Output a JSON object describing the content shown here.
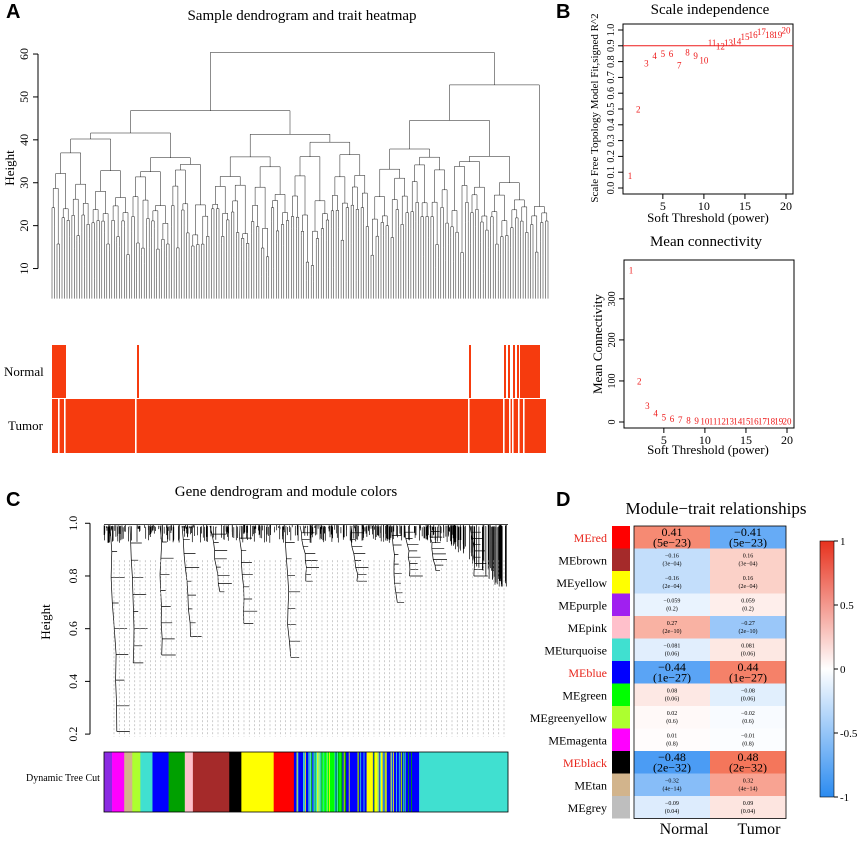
{
  "panels": {
    "a": "A",
    "b": "B",
    "c": "C",
    "d": "D"
  },
  "chart_data": [
    {
      "id": "A",
      "type": "dendrogram_heatmap",
      "title": "Sample dendrogram and trait heatmap",
      "ylabel": "Height",
      "yticks": [
        10,
        20,
        30,
        40,
        50,
        60
      ],
      "ylim": [
        5,
        67
      ],
      "traits": [
        "Normal",
        "Tumor"
      ],
      "colors": {
        "trait": "#f63b0e",
        "line": "#000000"
      }
    },
    {
      "id": "B1",
      "type": "scatter",
      "title": "Scale independence",
      "xlabel": "Soft Threshold (power)",
      "ylabel": "Scale Free Topology Model Fit,signed R^2",
      "xlim": [
        1,
        20
      ],
      "ylim": [
        0,
        1
      ],
      "xticks": [
        5,
        10,
        15,
        20
      ],
      "yticks": [
        0.0,
        0.1,
        0.2,
        0.3,
        0.4,
        0.5,
        0.6,
        0.7,
        0.8,
        0.9,
        1.0
      ],
      "hline": 0.9,
      "x": [
        1,
        2,
        3,
        4,
        5,
        6,
        7,
        8,
        9,
        10,
        11,
        12,
        13,
        14,
        15,
        16,
        17,
        18,
        19,
        20
      ],
      "y": [
        0.08,
        0.5,
        0.79,
        0.84,
        0.85,
        0.85,
        0.78,
        0.86,
        0.84,
        0.81,
        0.92,
        0.9,
        0.92,
        0.93,
        0.96,
        0.97,
        0.99,
        0.97,
        0.97,
        1.0
      ],
      "point_labels": [
        "1",
        "2",
        "3",
        "4",
        "5",
        "6",
        "7",
        "8",
        "9",
        "10",
        "11",
        "12",
        "13",
        "14",
        "15",
        "16",
        "17",
        "18",
        "19",
        "20"
      ],
      "colors": {
        "points": "#ee1a1a",
        "hline": "#ee1a1a"
      }
    },
    {
      "id": "B2",
      "type": "scatter",
      "title": "Mean connectivity",
      "xlabel": "Soft Threshold (power)",
      "ylabel": "Mean Connectivity",
      "xlim": [
        1,
        20
      ],
      "ylim": [
        0,
        380
      ],
      "xticks": [
        5,
        10,
        15,
        20
      ],
      "yticks": [
        0,
        100,
        200,
        300
      ],
      "x": [
        1,
        2,
        3,
        4,
        5,
        6,
        7,
        8,
        9,
        10,
        11,
        12,
        13,
        14,
        15,
        16,
        17,
        18,
        19,
        20
      ],
      "y": [
        370,
        100,
        40,
        22,
        12,
        8,
        6,
        5,
        4,
        3,
        3,
        3,
        3,
        3,
        3,
        3,
        3,
        3,
        3,
        3
      ],
      "point_labels": [
        "1",
        "2",
        "3",
        "4",
        "5",
        "6",
        "7",
        "8",
        "9",
        "10",
        "11",
        "12",
        "13",
        "14",
        "15",
        "16",
        "17",
        "18",
        "19",
        "20"
      ],
      "colors": {
        "points": "#ee1a1a"
      }
    },
    {
      "id": "C",
      "type": "dendrogram_colorbar",
      "title": "Gene dendrogram and module colors",
      "ylabel": "Height",
      "yticks": [
        "0.2",
        "0.4",
        "0.6",
        "0.8",
        "1.0"
      ],
      "ylim": [
        0.17,
        1.02
      ],
      "colorbar_label": "Dynamic Tree Cut",
      "modules": [
        {
          "color": "#8b2be2",
          "share": 0.02
        },
        {
          "color": "#ff00ff",
          "share": 0.03
        },
        {
          "color": "#d2b48c",
          "share": 0.02
        },
        {
          "color": "#adff2f",
          "share": 0.02
        },
        {
          "color": "#40e0d0",
          "share": 0.03
        },
        {
          "color": "#0000ff",
          "share": 0.04
        },
        {
          "color": "#00a000",
          "share": 0.04
        },
        {
          "color": "#ffc0cb",
          "share": 0.02
        },
        {
          "color": "#a52a2a",
          "share": 0.09
        },
        {
          "color": "#000000",
          "share": 0.03
        },
        {
          "color": "#ffff00",
          "share": 0.08
        },
        {
          "color": "#ff0000",
          "share": 0.05
        },
        {
          "color": "#0000ff",
          "share": 0.04
        },
        {
          "color": "#40e0d0",
          "share": 0.03
        },
        {
          "color": "#00ff00",
          "share": 0.05
        },
        {
          "color": "#0000ff",
          "share": 0.06
        },
        {
          "color": "#ffff00",
          "share": 0.04
        },
        {
          "color": "#0000ff",
          "share": 0.09
        },
        {
          "color": "#40e0d0",
          "share": 0.22
        }
      ]
    },
    {
      "id": "D",
      "type": "heatmap",
      "title": "Module−trait relationships",
      "columns": [
        "Normal",
        "Tumor"
      ],
      "legend_ticks": [
        "1",
        "0.5",
        "0",
        "-0.5",
        "-1"
      ],
      "rows": [
        {
          "name": "MEred",
          "color": "#ff0000",
          "highlight": true,
          "cells": [
            {
              "r": 0.41,
              "text": "0.41",
              "p": "(5e−23)"
            },
            {
              "r": -0.41,
              "text": "−0.41",
              "p": "(5e−23)"
            }
          ]
        },
        {
          "name": "MEbrown",
          "color": "#a52a2a",
          "highlight": false,
          "cells": [
            {
              "r": -0.16,
              "text": "−0.16",
              "p": "(3e−04)"
            },
            {
              "r": 0.16,
              "text": "0.16",
              "p": "(3e−04)"
            }
          ]
        },
        {
          "name": "MEyellow",
          "color": "#ffff00",
          "highlight": false,
          "cells": [
            {
              "r": -0.16,
              "text": "−0.16",
              "p": "(2e−04)"
            },
            {
              "r": 0.16,
              "text": "0.16",
              "p": "(2e−04)"
            }
          ]
        },
        {
          "name": "MEpurple",
          "color": "#a020f0",
          "highlight": false,
          "cells": [
            {
              "r": -0.059,
              "text": "−0.059",
              "p": "(0.2)"
            },
            {
              "r": 0.059,
              "text": "0.059",
              "p": "(0.2)"
            }
          ]
        },
        {
          "name": "MEpink",
          "color": "#ffc0cb",
          "highlight": false,
          "cells": [
            {
              "r": 0.27,
              "text": "0.27",
              "p": "(2e−10)"
            },
            {
              "r": -0.27,
              "text": "−0.27",
              "p": "(2e−10)"
            }
          ]
        },
        {
          "name": "MEturquoise",
          "color": "#40e0d0",
          "highlight": false,
          "cells": [
            {
              "r": -0.081,
              "text": "−0.081",
              "p": "(0.06)"
            },
            {
              "r": 0.081,
              "text": "0.081",
              "p": "(0.06)"
            }
          ]
        },
        {
          "name": "MEblue",
          "color": "#0000ff",
          "highlight": true,
          "cells": [
            {
              "r": -0.44,
              "text": "−0.44",
              "p": "(1e−27)"
            },
            {
              "r": 0.44,
              "text": "0.44",
              "p": "(1e−27)"
            }
          ]
        },
        {
          "name": "MEgreen",
          "color": "#00ff00",
          "highlight": false,
          "cells": [
            {
              "r": 0.08,
              "text": "0.08",
              "p": "(0.06)"
            },
            {
              "r": -0.08,
              "text": "−0.08",
              "p": "(0.06)"
            }
          ]
        },
        {
          "name": "MEgreenyellow",
          "color": "#adff2f",
          "highlight": false,
          "cells": [
            {
              "r": 0.02,
              "text": "0.02",
              "p": "(0.6)"
            },
            {
              "r": -0.02,
              "text": "−0.02",
              "p": "(0.6)"
            }
          ]
        },
        {
          "name": "MEmagenta",
          "color": "#ff00ff",
          "highlight": false,
          "cells": [
            {
              "r": 0.01,
              "text": "0.01",
              "p": "(0.8)"
            },
            {
              "r": -0.01,
              "text": "−0.01",
              "p": "(0.8)"
            }
          ]
        },
        {
          "name": "MEblack",
          "color": "#000000",
          "highlight": true,
          "cells": [
            {
              "r": -0.48,
              "text": "−0.48",
              "p": "(2e−32)"
            },
            {
              "r": 0.48,
              "text": "0.48",
              "p": "(2e−32)"
            }
          ]
        },
        {
          "name": "MEtan",
          "color": "#d2b48c",
          "highlight": false,
          "cells": [
            {
              "r": -0.32,
              "text": "−0.32",
              "p": "(4e−14)"
            },
            {
              "r": 0.32,
              "text": "0.32",
              "p": "(4e−14)"
            }
          ]
        },
        {
          "name": "MEgrey",
          "color": "#bebebe",
          "highlight": false,
          "cells": [
            {
              "r": -0.09,
              "text": "−0.09",
              "p": "(0.04)"
            },
            {
              "r": 0.09,
              "text": "0.09",
              "p": "(0.04)"
            }
          ]
        }
      ]
    }
  ]
}
